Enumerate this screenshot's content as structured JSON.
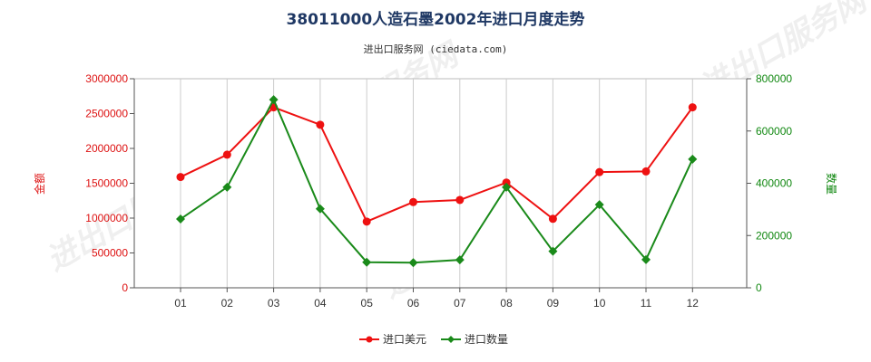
{
  "chart_data": {
    "type": "line",
    "title": "38011000人造石墨2002年进口月度走势",
    "subtitle": "进出口服务网 (ciedata.com)",
    "watermark": "进出口服务网",
    "categories": [
      "01",
      "02",
      "03",
      "04",
      "05",
      "06",
      "07",
      "08",
      "09",
      "10",
      "11",
      "12"
    ],
    "y_left": {
      "label": "金额",
      "range": [
        0,
        3000000
      ],
      "ticks": [
        "0",
        "500000",
        "1000000",
        "1500000",
        "2000000",
        "2500000",
        "3000000"
      ],
      "color": "#dd1111"
    },
    "y_right": {
      "label": "数量",
      "range": [
        0,
        800000
      ],
      "ticks": [
        "0",
        "200000",
        "400000",
        "600000",
        "800000"
      ],
      "color": "#118811"
    },
    "grid": "vertical",
    "legend_position": "bottom-center",
    "series": [
      {
        "name": "进口美元",
        "axis": "left",
        "color": "#ee1111",
        "marker": "circle",
        "values": [
          1590000,
          1910000,
          2590000,
          2340000,
          950000,
          1230000,
          1260000,
          1510000,
          990000,
          1660000,
          1670000,
          2590000
        ]
      },
      {
        "name": "进口数量",
        "axis": "right",
        "color": "#1a8a1a",
        "marker": "diamond",
        "values": [
          263000,
          385000,
          720000,
          302000,
          98000,
          96000,
          107000,
          385000,
          140000,
          318000,
          108000,
          492000
        ]
      }
    ]
  }
}
